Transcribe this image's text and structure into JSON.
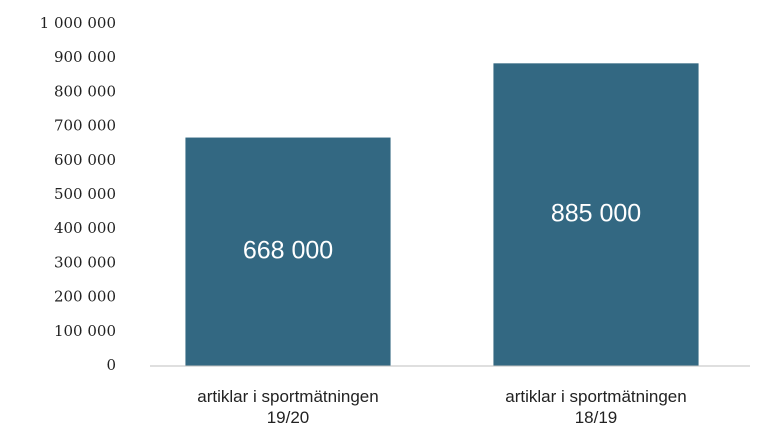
{
  "chart_data": {
    "type": "bar",
    "categories": [
      "artiklar i sportmätningen 19/20",
      "artiklar i sportmätningen 18/19"
    ],
    "values": [
      668000,
      885000
    ],
    "value_labels": [
      "668 000",
      "885 000"
    ],
    "color": "#336882",
    "ylim": [
      0,
      1000000
    ],
    "yticks": [
      0,
      {
        "value": 100000,
        "label": "100 000"
      },
      {
        "value": 200000,
        "label": "200 000"
      },
      {
        "value": 300000,
        "label": "300 000"
      },
      {
        "value": 400000,
        "label": "400 000"
      },
      {
        "value": 500000,
        "label": "500 000"
      },
      {
        "value": 600000,
        "label": "600 000"
      },
      {
        "value": 700000,
        "label": "700 000"
      },
      {
        "value": 800000,
        "label": "800 000"
      },
      {
        "value": 900000,
        "label": "900 000"
      },
      {
        "value": 1000000,
        "label": "1 000 000"
      }
    ],
    "grid": false
  }
}
